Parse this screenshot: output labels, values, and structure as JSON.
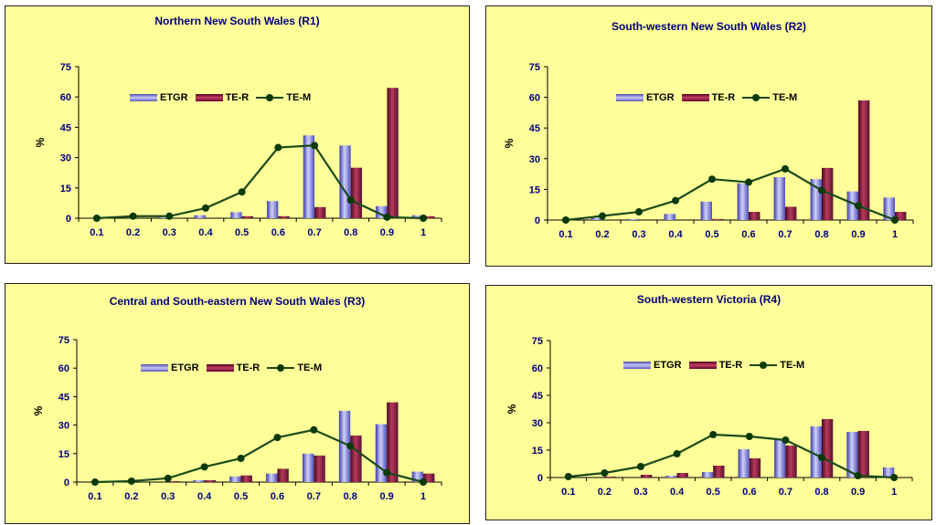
{
  "legend": {
    "etgr": "ETGR",
    "ter": "TE-R",
    "tem": "TE-M"
  },
  "colors": {
    "background": "#ffff99",
    "etgr": "#7a7ad8",
    "ter": "#8b1a3a",
    "tem": "#0f4010",
    "axis_text": "#000080"
  },
  "chart_data": [
    {
      "type": "bar",
      "title": "Northern New South Wales (R1)",
      "ylabel": "%",
      "xlabel": "",
      "ylim": [
        0,
        75
      ],
      "yticks": [
        0,
        15,
        30,
        45,
        60,
        75
      ],
      "categories": [
        "0.1",
        "0.2",
        "0.3",
        "0.4",
        "0.5",
        "0.6",
        "0.7",
        "0.8",
        "0.9",
        "1"
      ],
      "legend_position": "top-center",
      "grid": false,
      "series": [
        {
          "name": "ETGR",
          "type": "bar",
          "values": [
            0,
            0,
            0.5,
            1.5,
            3,
            8.5,
            41,
            36,
            6,
            1.5
          ]
        },
        {
          "name": "TE-R",
          "type": "bar",
          "values": [
            0,
            0,
            0,
            0,
            1,
            1,
            5.5,
            25,
            64.5,
            1
          ]
        },
        {
          "name": "TE-M",
          "type": "line",
          "values": [
            0,
            1,
            1,
            5,
            13,
            35,
            36,
            9,
            0.5,
            0
          ]
        }
      ]
    },
    {
      "type": "bar",
      "title": "South-western New South Wales (R2)",
      "ylabel": "%",
      "xlabel": "",
      "ylim": [
        0,
        75
      ],
      "yticks": [
        0,
        15,
        30,
        45,
        60,
        75
      ],
      "categories": [
        "0.1",
        "0.2",
        "0.3",
        "0.4",
        "0.5",
        "0.6",
        "0.7",
        "0.8",
        "0.9",
        "1"
      ],
      "legend_position": "top-center",
      "grid": false,
      "series": [
        {
          "name": "ETGR",
          "type": "bar",
          "values": [
            0,
            1,
            0.5,
            3,
            9,
            18,
            21,
            20,
            14,
            11
          ]
        },
        {
          "name": "TE-R",
          "type": "bar",
          "values": [
            0,
            0,
            0,
            0,
            0.5,
            4,
            6.5,
            25.5,
            58.5,
            4
          ]
        },
        {
          "name": "TE-M",
          "type": "line",
          "values": [
            0,
            2,
            4,
            9.5,
            20,
            18.5,
            25,
            14.5,
            7,
            0
          ]
        }
      ]
    },
    {
      "type": "bar",
      "title": "Central and South-eastern New South Wales (R3)",
      "ylabel": "%",
      "xlabel": "",
      "ylim": [
        0,
        75
      ],
      "yticks": [
        0,
        15,
        30,
        45,
        60,
        75
      ],
      "categories": [
        "0.1",
        "0.2",
        "0.3",
        "0.4",
        "0.5",
        "0.6",
        "0.7",
        "0.8",
        "0.9",
        "1"
      ],
      "legend_position": "top-center",
      "grid": false,
      "series": [
        {
          "name": "ETGR",
          "type": "bar",
          "values": [
            0,
            0,
            0,
            1,
            3,
            4.5,
            15,
            37.5,
            30.5,
            5.5
          ]
        },
        {
          "name": "TE-R",
          "type": "bar",
          "values": [
            0,
            0,
            0.5,
            1,
            3.5,
            7,
            14,
            24.5,
            42,
            4.5
          ]
        },
        {
          "name": "TE-M",
          "type": "line",
          "values": [
            0,
            0.5,
            2,
            8,
            12.5,
            23.5,
            27.5,
            19,
            5,
            0
          ]
        }
      ]
    },
    {
      "type": "bar",
      "title": "South-western Victoria (R4)",
      "ylabel": "%",
      "xlabel": "",
      "ylim": [
        0,
        75
      ],
      "yticks": [
        0,
        15,
        30,
        45,
        60,
        75
      ],
      "categories": [
        "0.1",
        "0.2",
        "0.3",
        "0.4",
        "0.5",
        "0.6",
        "0.7",
        "0.8",
        "0.9",
        "1"
      ],
      "legend_position": "top-center",
      "grid": false,
      "series": [
        {
          "name": "ETGR",
          "type": "bar",
          "values": [
            0,
            0,
            0,
            1,
            3,
            15.5,
            20.5,
            28,
            25,
            5.5
          ]
        },
        {
          "name": "TE-R",
          "type": "bar",
          "values": [
            0,
            0.5,
            1.5,
            2.5,
            6.5,
            10.5,
            17.5,
            32,
            25.5,
            0
          ]
        },
        {
          "name": "TE-M",
          "type": "line",
          "values": [
            0.5,
            2.5,
            6,
            13,
            23.5,
            22.5,
            20.5,
            11,
            1,
            0
          ]
        }
      ]
    }
  ]
}
